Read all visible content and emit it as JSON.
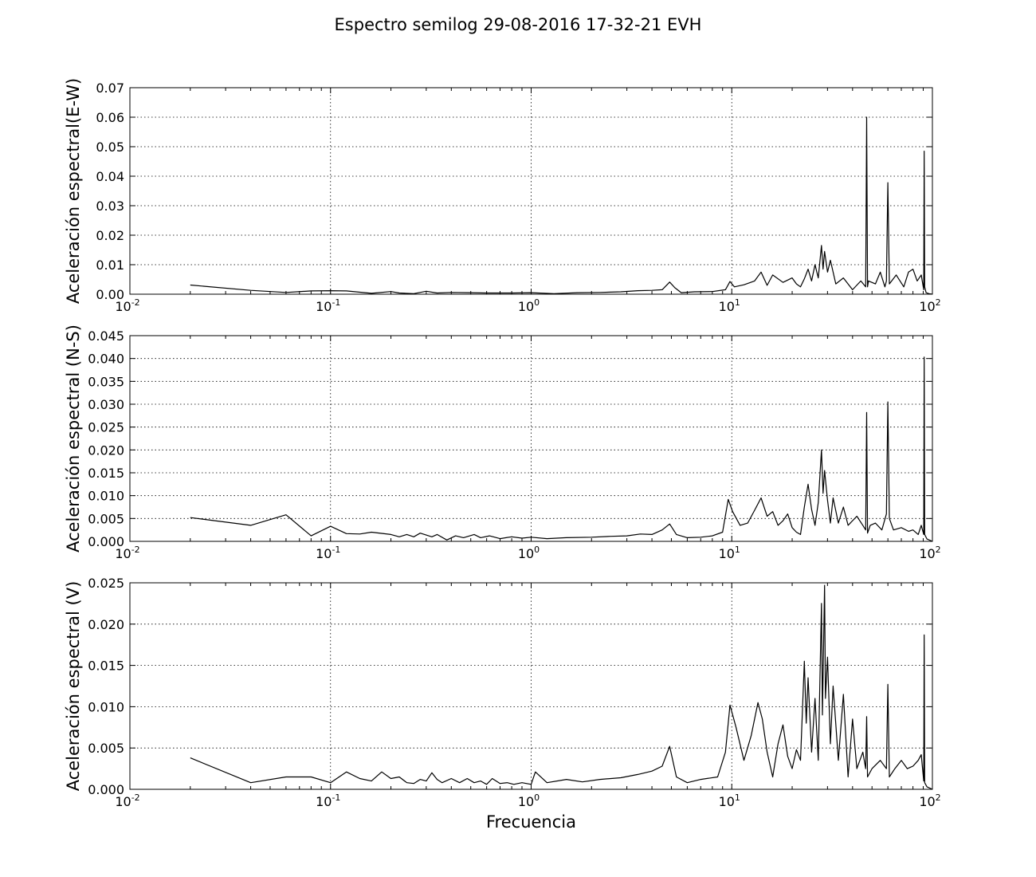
{
  "figure": {
    "title": "Espectro semilog 29-08-2016 17-32-21 EVH"
  },
  "chart_data": [
    {
      "type": "line",
      "xscale": "log",
      "xlim": [
        0.01,
        100
      ],
      "ylim": [
        0,
        0.07
      ],
      "xticks": [
        {
          "base": "10",
          "exp": "-2",
          "value": 0.01
        },
        {
          "base": "10",
          "exp": "-1",
          "value": 0.1
        },
        {
          "base": "10",
          "exp": "0",
          "value": 1
        },
        {
          "base": "10",
          "exp": "1",
          "value": 10
        },
        {
          "base": "10",
          "exp": "2",
          "value": 100
        }
      ],
      "yticks": [
        {
          "label": "0.00",
          "value": 0
        },
        {
          "label": "0.01",
          "value": 0.01
        },
        {
          "label": "0.02",
          "value": 0.02
        },
        {
          "label": "0.03",
          "value": 0.03
        },
        {
          "label": "0.04",
          "value": 0.04
        },
        {
          "label": "0.05",
          "value": 0.05
        },
        {
          "label": "0.06",
          "value": 0.06
        },
        {
          "label": "0.07",
          "value": 0.07
        }
      ],
      "xlabel": "",
      "ylabel": "Aceleración espectral(E-W)",
      "grid": true,
      "series": [
        {
          "x": [
            0.02,
            0.04,
            0.06,
            0.08,
            0.1,
            0.12,
            0.16,
            0.2,
            0.22,
            0.26,
            0.3,
            0.34,
            0.4,
            0.5,
            0.6,
            0.8,
            1,
            1.3,
            1.7,
            2.2,
            2.8,
            3.4,
            4.0,
            4.5,
            4.9,
            5.2,
            5.6,
            6.5,
            8,
            9.3,
            9.8,
            10.3,
            11.5,
            13,
            14,
            15,
            16,
            18,
            20,
            21,
            22,
            23,
            24,
            25,
            26,
            27,
            28,
            28.5,
            29,
            30,
            31,
            33,
            36,
            40,
            44,
            46.5,
            47,
            47.5,
            48,
            52,
            55,
            58,
            59,
            60,
            61,
            66,
            72,
            76,
            80,
            84,
            88,
            90.5,
            91,
            91.5,
            93,
            96,
            100
          ],
          "y": [
            0.0031,
            0.0013,
            0.0006,
            0.0011,
            0.0012,
            0.0011,
            0.0003,
            0.0009,
            0.0004,
            0.0002,
            0.001,
            0.0004,
            0.0006,
            0.0005,
            0.0004,
            0.0004,
            0.0005,
            0.0002,
            0.0005,
            0.0006,
            0.0008,
            0.0012,
            0.0013,
            0.0015,
            0.0041,
            0.0022,
            0.0005,
            0.0008,
            0.0009,
            0.0015,
            0.0043,
            0.0025,
            0.0032,
            0.0045,
            0.0075,
            0.003,
            0.0065,
            0.004,
            0.0055,
            0.0035,
            0.0025,
            0.0052,
            0.0085,
            0.0045,
            0.01,
            0.0055,
            0.0165,
            0.0085,
            0.0145,
            0.0075,
            0.0115,
            0.0035,
            0.0055,
            0.0015,
            0.0045,
            0.0025,
            0.06,
            0.0025,
            0.0045,
            0.0035,
            0.0075,
            0.0025,
            0.0045,
            0.0378,
            0.0035,
            0.0065,
            0.0025,
            0.0075,
            0.0085,
            0.0045,
            0.0065,
            0.0015,
            0.0485,
            0.0025,
            0.0005,
            0.0002,
            0.0
          ]
        }
      ]
    },
    {
      "type": "line",
      "xscale": "log",
      "xlim": [
        0.01,
        100
      ],
      "ylim": [
        0,
        0.045
      ],
      "xticks": [
        {
          "base": "10",
          "exp": "-2",
          "value": 0.01
        },
        {
          "base": "10",
          "exp": "-1",
          "value": 0.1
        },
        {
          "base": "10",
          "exp": "0",
          "value": 1
        },
        {
          "base": "10",
          "exp": "1",
          "value": 10
        },
        {
          "base": "10",
          "exp": "2",
          "value": 100
        }
      ],
      "yticks": [
        {
          "label": "0.000",
          "value": 0
        },
        {
          "label": "0.005",
          "value": 0.005
        },
        {
          "label": "0.010",
          "value": 0.01
        },
        {
          "label": "0.015",
          "value": 0.015
        },
        {
          "label": "0.020",
          "value": 0.02
        },
        {
          "label": "0.025",
          "value": 0.025
        },
        {
          "label": "0.030",
          "value": 0.03
        },
        {
          "label": "0.035",
          "value": 0.035
        },
        {
          "label": "0.040",
          "value": 0.04
        },
        {
          "label": "0.045",
          "value": 0.045
        }
      ],
      "xlabel": "",
      "ylabel": "Aceleración espectral (N-S)",
      "grid": true,
      "series": [
        {
          "x": [
            0.02,
            0.04,
            0.06,
            0.08,
            0.1,
            0.12,
            0.14,
            0.16,
            0.2,
            0.22,
            0.24,
            0.26,
            0.28,
            0.32,
            0.34,
            0.38,
            0.42,
            0.46,
            0.52,
            0.56,
            0.62,
            0.7,
            0.8,
            0.9,
            1.0,
            1.2,
            1.5,
            2.0,
            2.5,
            3.0,
            3.5,
            4.0,
            4.5,
            4.9,
            5.3,
            6,
            7,
            8,
            9,
            9.6,
            10.1,
            11,
            12,
            13,
            14,
            15,
            16,
            17,
            18,
            19,
            20,
            21,
            22,
            23,
            24,
            25,
            26,
            27,
            28,
            28.5,
            29,
            30,
            31,
            32,
            34,
            36,
            38,
            42,
            45,
            46.5,
            47,
            47.5,
            49,
            52,
            56,
            59,
            60,
            61,
            64,
            70,
            76,
            80,
            85,
            88,
            90.5,
            91,
            91.5,
            94,
            100
          ],
          "y": [
            0.0052,
            0.0035,
            0.0058,
            0.0012,
            0.0033,
            0.0017,
            0.0016,
            0.002,
            0.0015,
            0.001,
            0.0015,
            0.001,
            0.0018,
            0.001,
            0.0015,
            0.0003,
            0.0012,
            0.0008,
            0.0015,
            0.0008,
            0.0012,
            0.0006,
            0.001,
            0.0007,
            0.0009,
            0.0006,
            0.0008,
            0.0009,
            0.0011,
            0.0012,
            0.0016,
            0.0015,
            0.0025,
            0.0038,
            0.0015,
            0.0008,
            0.0009,
            0.0012,
            0.002,
            0.0092,
            0.0065,
            0.0035,
            0.004,
            0.0068,
            0.0095,
            0.0055,
            0.0065,
            0.0035,
            0.0045,
            0.006,
            0.003,
            0.002,
            0.0015,
            0.0075,
            0.0125,
            0.007,
            0.0035,
            0.0085,
            0.02,
            0.0105,
            0.0155,
            0.009,
            0.004,
            0.0095,
            0.004,
            0.0075,
            0.0035,
            0.0055,
            0.0035,
            0.0025,
            0.0282,
            0.0018,
            0.0035,
            0.004,
            0.0025,
            0.006,
            0.0305,
            0.005,
            0.0025,
            0.003,
            0.0022,
            0.0025,
            0.0015,
            0.0035,
            0.0015,
            0.0403,
            0.0015,
            0.0005,
            0.0
          ]
        }
      ]
    },
    {
      "type": "line",
      "xscale": "log",
      "xlim": [
        0.01,
        100
      ],
      "ylim": [
        0,
        0.025
      ],
      "xticks": [
        {
          "base": "10",
          "exp": "-2",
          "value": 0.01
        },
        {
          "base": "10",
          "exp": "-1",
          "value": 0.1
        },
        {
          "base": "10",
          "exp": "0",
          "value": 1
        },
        {
          "base": "10",
          "exp": "1",
          "value": 10
        },
        {
          "base": "10",
          "exp": "2",
          "value": 100
        }
      ],
      "yticks": [
        {
          "label": "0.000",
          "value": 0
        },
        {
          "label": "0.005",
          "value": 0.005
        },
        {
          "label": "0.010",
          "value": 0.01
        },
        {
          "label": "0.015",
          "value": 0.015
        },
        {
          "label": "0.020",
          "value": 0.02
        },
        {
          "label": "0.025",
          "value": 0.025
        }
      ],
      "xlabel": "Frecuencia",
      "ylabel": "Aceleración espectral (V)",
      "grid": true,
      "series": [
        {
          "x": [
            0.02,
            0.04,
            0.06,
            0.08,
            0.1,
            0.12,
            0.14,
            0.16,
            0.18,
            0.2,
            0.22,
            0.24,
            0.26,
            0.28,
            0.3,
            0.32,
            0.34,
            0.36,
            0.4,
            0.44,
            0.48,
            0.52,
            0.56,
            0.6,
            0.64,
            0.7,
            0.76,
            0.82,
            0.9,
            1.0,
            1.05,
            1.2,
            1.5,
            1.8,
            2.2,
            2.8,
            3.4,
            4.0,
            4.5,
            4.9,
            5.3,
            6,
            7,
            8.5,
            9.3,
            9.8,
            10.5,
            11.5,
            12.5,
            13.5,
            14.2,
            15,
            16,
            17,
            18,
            19,
            20,
            21,
            22,
            23,
            23.5,
            24,
            25,
            26,
            27,
            28,
            28.3,
            29,
            29.3,
            30,
            31,
            32,
            34,
            36,
            38,
            40,
            42,
            45,
            46.5,
            47,
            47.5,
            50,
            55,
            59,
            60,
            61,
            65,
            70,
            75,
            80,
            85,
            88,
            90.5,
            91,
            91.5,
            94,
            100
          ],
          "y": [
            0.0038,
            0.0008,
            0.0015,
            0.0015,
            0.0008,
            0.0021,
            0.0013,
            0.001,
            0.0021,
            0.0013,
            0.0015,
            0.0008,
            0.0007,
            0.0012,
            0.001,
            0.002,
            0.0012,
            0.0008,
            0.0013,
            0.0008,
            0.0013,
            0.0008,
            0.001,
            0.0006,
            0.0013,
            0.0007,
            0.0008,
            0.0006,
            0.0008,
            0.0006,
            0.0021,
            0.0008,
            0.0012,
            0.0009,
            0.0012,
            0.0014,
            0.0018,
            0.0022,
            0.0028,
            0.0052,
            0.0015,
            0.0008,
            0.0012,
            0.0015,
            0.0045,
            0.0102,
            0.0075,
            0.0035,
            0.0065,
            0.0105,
            0.0085,
            0.0045,
            0.0015,
            0.0055,
            0.0078,
            0.004,
            0.0025,
            0.0048,
            0.0035,
            0.0155,
            0.008,
            0.0135,
            0.0045,
            0.011,
            0.0035,
            0.0225,
            0.009,
            0.0247,
            0.011,
            0.016,
            0.0055,
            0.0125,
            0.0035,
            0.0115,
            0.0015,
            0.0085,
            0.0025,
            0.0045,
            0.0025,
            0.0088,
            0.0015,
            0.0025,
            0.0035,
            0.0025,
            0.0127,
            0.0015,
            0.0025,
            0.0035,
            0.0025,
            0.0028,
            0.0035,
            0.0042,
            0.001,
            0.0187,
            0.0008,
            0.0003,
            0.0
          ]
        }
      ]
    }
  ]
}
